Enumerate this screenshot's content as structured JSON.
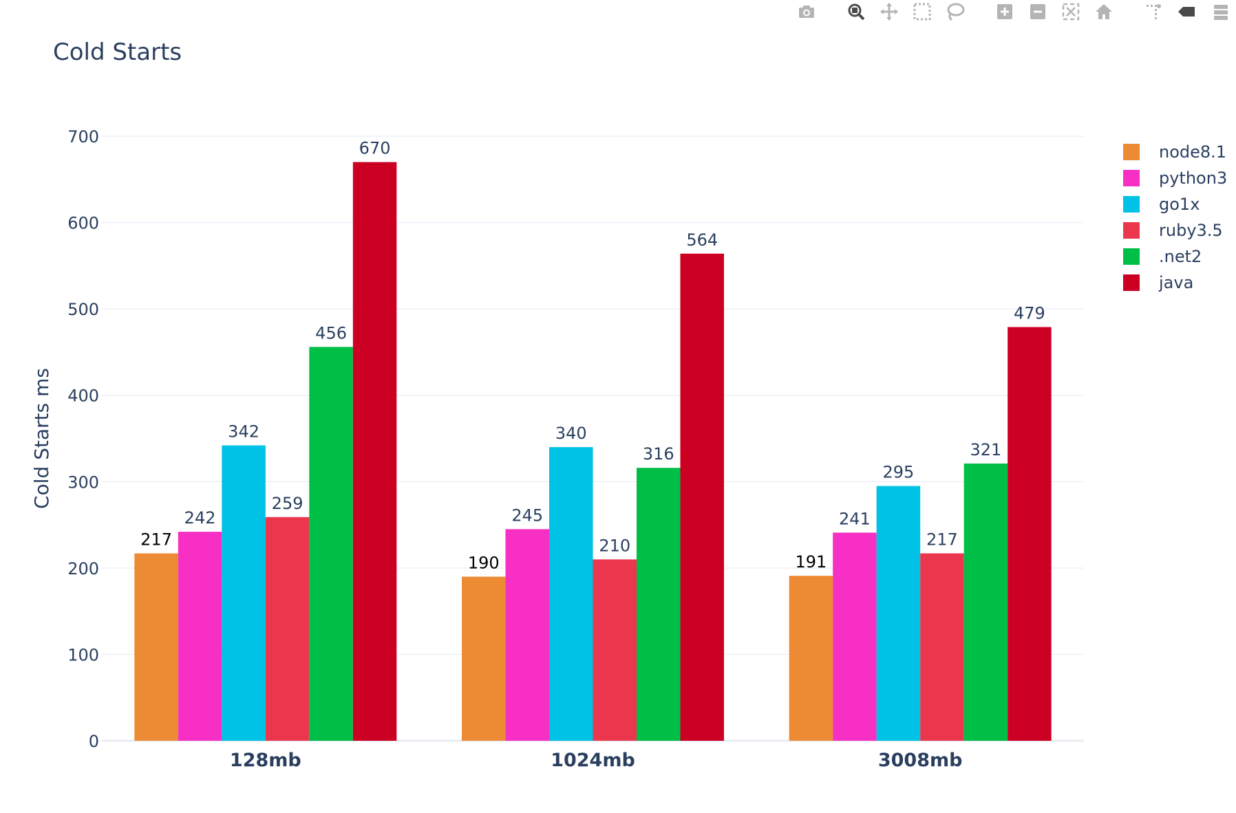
{
  "modebar": {
    "buttons": [
      {
        "name": "camera-icon"
      },
      {
        "name": "zoom-icon"
      },
      {
        "name": "pan-icon"
      },
      {
        "name": "box-select-icon"
      },
      {
        "name": "lasso-select-icon"
      },
      {
        "name": "zoom-in-icon"
      },
      {
        "name": "zoom-out-icon"
      },
      {
        "name": "autoscale-icon"
      },
      {
        "name": "home-icon"
      },
      {
        "name": "spike-lines-icon"
      },
      {
        "name": "hover-closest-icon"
      },
      {
        "name": "hover-compare-icon"
      }
    ]
  },
  "chart_data": {
    "type": "bar",
    "title": "Cold Starts",
    "xlabel": "",
    "ylabel": "Cold Starts ms",
    "ylim": [
      0,
      700
    ],
    "yticks": [
      0,
      100,
      200,
      300,
      400,
      500,
      600,
      700
    ],
    "categories": [
      "128mb",
      "1024mb",
      "3008mb"
    ],
    "grid": true,
    "legend_position": "top-right",
    "series": [
      {
        "name": "node8.1",
        "color": "#ed8b34",
        "values": [
          217,
          190,
          191
        ]
      },
      {
        "name": "python3",
        "color": "#f72fc4",
        "values": [
          242,
          245,
          241
        ]
      },
      {
        "name": "go1x",
        "color": "#00c2e6",
        "values": [
          342,
          340,
          295
        ]
      },
      {
        "name": "ruby3.5",
        "color": "#eb374e",
        "values": [
          259,
          210,
          217
        ]
      },
      {
        "name": ".net2",
        "color": "#00bf47",
        "values": [
          456,
          316,
          321
        ]
      },
      {
        "name": "java",
        "color": "#cc0022",
        "values": [
          670,
          564,
          479
        ]
      }
    ]
  }
}
